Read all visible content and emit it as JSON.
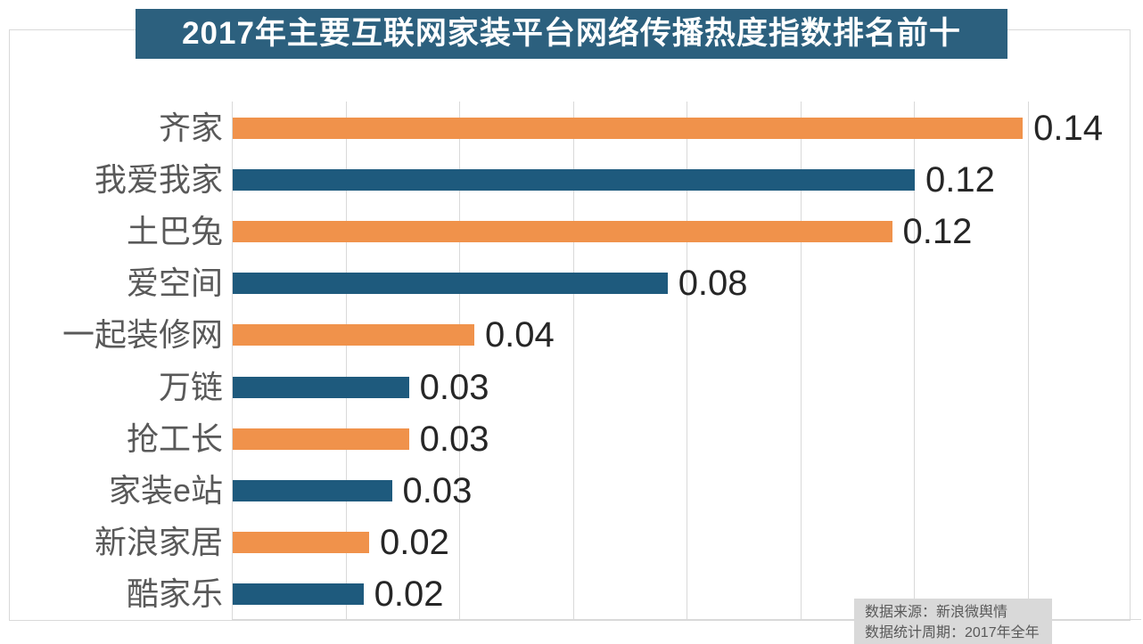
{
  "chart_data": {
    "type": "bar",
    "orientation": "horizontal",
    "title": "2017年主要互联网家装平台网络传播热度指数排名前十",
    "categories": [
      "齐家",
      "我爱我家",
      "土巴兔",
      "爱空间",
      "一起装修网",
      "万链",
      "抢工长",
      "家装e站",
      "新浪家居",
      "酷家乐"
    ],
    "values": [
      0.14,
      0.12,
      0.12,
      0.08,
      0.04,
      0.03,
      0.03,
      0.03,
      0.02,
      0.02
    ],
    "value_labels": [
      "0.14",
      "0.12",
      "0.12",
      "0.08",
      "0.04",
      "0.03",
      "0.03",
      "0.03",
      "0.02",
      "0.02"
    ],
    "values_precise_est": [
      0.139,
      0.12,
      0.116,
      0.0765,
      0.0425,
      0.031,
      0.031,
      0.028,
      0.024,
      0.023
    ],
    "xlabel": "",
    "ylabel": "",
    "xlim": [
      0,
      0.16
    ],
    "gridline_step": 0.02,
    "grid": true,
    "legend": false,
    "bar_color_odd_rows": "#F0924B",
    "bar_color_even_rows": "#1E5A7D"
  },
  "footer": {
    "line1": "数据来源：新浪微舆情",
    "line2": "数据统计周期：2017年全年"
  },
  "colors": {
    "title_bg": "#2C607E",
    "title_text": "#FFFFFF",
    "orange": "#F0924B",
    "blue": "#1E5A7D",
    "gridline": "#D9D9D9",
    "panel_border": "#D9D9D9",
    "category_label": "#595959",
    "value_label": "#262626",
    "footer_bg": "#D9D9D9",
    "footer_text": "#595959"
  }
}
